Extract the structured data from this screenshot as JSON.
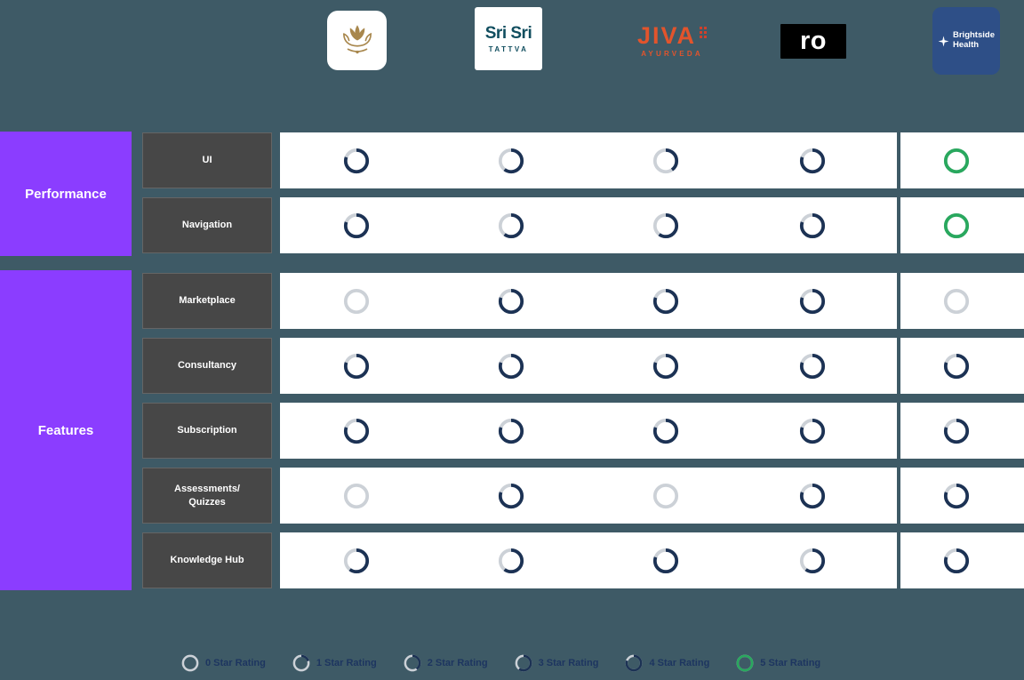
{
  "colors": {
    "background": "#3e5a66",
    "section_purple": "#8b3dff",
    "row_label_bg": "#474747",
    "bar_white": "#ffffff",
    "ring_track": "#ccd1d7",
    "rating_partial": "#1c3254",
    "rating_full": "#29a85e",
    "legend_text": "#1d3560",
    "lotus_gold": "#a8874d",
    "srisri_teal": "#114e5f",
    "jiva_orange": "#e2542c",
    "jiva_red": "#d0402b",
    "brightside_blue": "#2e4f87"
  },
  "logos": {
    "lotus": {
      "name": "lotus brand logo"
    },
    "srisri": {
      "line1": "Sri Sri",
      "line2": "TATTVA"
    },
    "jiva": {
      "line1": "JIVA",
      "line2": "AYURVEDA"
    },
    "ro": {
      "text": "ro"
    },
    "brightside": {
      "line1": "Brightside",
      "line2": "Health"
    }
  },
  "chart_data": {
    "type": "table",
    "columns": [
      "(lotus logo)",
      "Sri Sri Tattva",
      "Jiva Ayurveda",
      "ro",
      "Brightside Health"
    ],
    "rating_scale_max": 5,
    "groups": [
      {
        "label": "Performance",
        "rows": [
          {
            "label": "UI",
            "ratings": [
              4,
              3,
              2,
              4,
              5
            ]
          },
          {
            "label": "Navigation",
            "ratings": [
              4,
              3,
              3,
              4,
              5
            ]
          }
        ]
      },
      {
        "label": "Features",
        "rows": [
          {
            "label": "Marketplace",
            "ratings": [
              0,
              4,
              4,
              4,
              0
            ]
          },
          {
            "label": "Consultancy",
            "ratings": [
              4,
              4,
              4,
              4,
              4
            ]
          },
          {
            "label": "Subscription",
            "ratings": [
              4,
              4,
              4,
              4,
              4
            ]
          },
          {
            "label": "Assessments/ Quizzes",
            "ratings": [
              0,
              4,
              0,
              4,
              4
            ]
          },
          {
            "label": "Knowledge Hub",
            "ratings": [
              3,
              3,
              4,
              3,
              4
            ]
          }
        ]
      }
    ],
    "legend": [
      {
        "rating": 0,
        "label": "0 Star Rating"
      },
      {
        "rating": 1,
        "label": "1 Star Rating"
      },
      {
        "rating": 2,
        "label": "2 Star Rating"
      },
      {
        "rating": 3,
        "label": "3 Star Rating"
      },
      {
        "rating": 4,
        "label": "4 Star Rating"
      },
      {
        "rating": 5,
        "label": "5 Star Rating"
      }
    ]
  }
}
